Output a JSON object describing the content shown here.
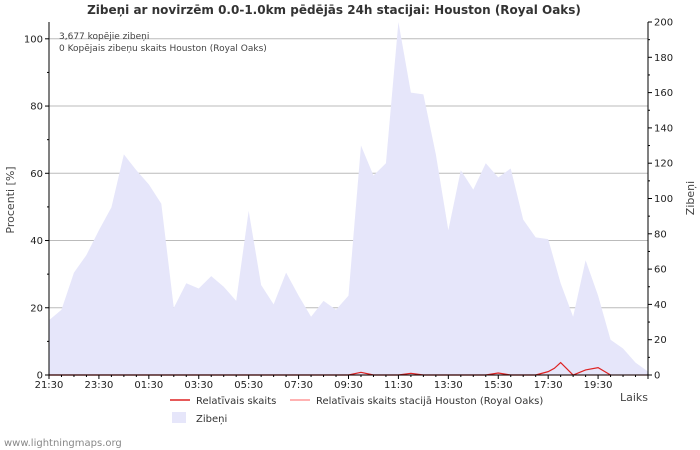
{
  "chart_data": {
    "type": "area",
    "title": "Zibeņi ar novirzēm 0.0-1.0km pēdējās 24h stacijai: Houston (Royal Oaks)",
    "xlabel": "Laiks",
    "ylabel_left": "Procenti   [%]",
    "ylabel_right": "Zibeņi",
    "left_ylim": [
      0,
      105
    ],
    "left_ticks": [
      0,
      20,
      40,
      60,
      80,
      100
    ],
    "right_ylim": [
      0,
      200
    ],
    "right_ticks": [
      0,
      20,
      40,
      60,
      80,
      100,
      120,
      140,
      160,
      180,
      200
    ],
    "xlim": [
      0,
      48
    ],
    "x_tick_positions": [
      0,
      4,
      8,
      12,
      16,
      20,
      24,
      28,
      32,
      36,
      40,
      44
    ],
    "x_tick_labels": [
      "21:30",
      "23:30",
      "01:30",
      "03:30",
      "05:30",
      "07:30",
      "09:30",
      "11:30",
      "13:30",
      "15:30",
      "17:30",
      "19:30"
    ],
    "annotations": [
      "3,677 kopējie zibeņi",
      "0 Kopējais zibeņu skaits Houston (Royal Oaks)"
    ],
    "series": [
      {
        "name": "Zibeņi",
        "axis": "right",
        "style": "area",
        "color": "#e6e6fa",
        "x": [
          0,
          1,
          2,
          3,
          4,
          5,
          6,
          7,
          8,
          9,
          10,
          11,
          12,
          13,
          14,
          15,
          16,
          17,
          18,
          19,
          20,
          21,
          22,
          23,
          24,
          25,
          26,
          27,
          28,
          29,
          30,
          31,
          32,
          33,
          34,
          35,
          36,
          37,
          38,
          39,
          40,
          41,
          42,
          43,
          44,
          45,
          46,
          47,
          48
        ],
        "values": [
          31,
          37,
          58,
          68,
          82,
          95,
          125,
          116,
          108,
          97,
          38,
          52,
          49,
          56,
          50,
          42,
          93,
          51,
          40,
          58,
          45,
          33,
          42,
          37,
          45,
          130,
          113,
          120,
          200,
          160,
          159,
          125,
          82,
          116,
          105,
          120,
          112,
          117,
          88,
          78,
          77,
          52,
          33,
          65,
          45,
          20,
          15,
          7,
          2
        ]
      },
      {
        "name": "Relatīvais skaits",
        "axis": "left",
        "style": "line",
        "color": "#dd2222",
        "x": [
          0,
          24,
          25,
          26,
          27,
          28,
          29,
          30,
          35,
          36,
          37,
          38,
          39,
          40,
          40.5,
          41,
          42,
          43,
          44,
          45
        ],
        "values": [
          0,
          0,
          0.8,
          0,
          0,
          0,
          0.5,
          0,
          0,
          0.6,
          0,
          0,
          0,
          1,
          2,
          3.7,
          0,
          1.5,
          2.2,
          0
        ]
      },
      {
        "name": "Relatīvais skaits stacijā Houston (Royal Oaks)",
        "axis": "left",
        "style": "line",
        "color": "#ff9999",
        "x": [
          0,
          48
        ],
        "values": [
          0,
          0
        ]
      }
    ],
    "legend": [
      {
        "label": "Relatīvais skaits",
        "type": "line",
        "color": "#dd2222"
      },
      {
        "label": "Relatīvais skaits stacijā Houston (Royal Oaks)",
        "type": "line",
        "color": "#ff9999"
      },
      {
        "label": "Zibeņi",
        "type": "area",
        "color": "#e6e6fa"
      }
    ]
  },
  "footer": {
    "credit": "www.lightningmaps.org"
  }
}
